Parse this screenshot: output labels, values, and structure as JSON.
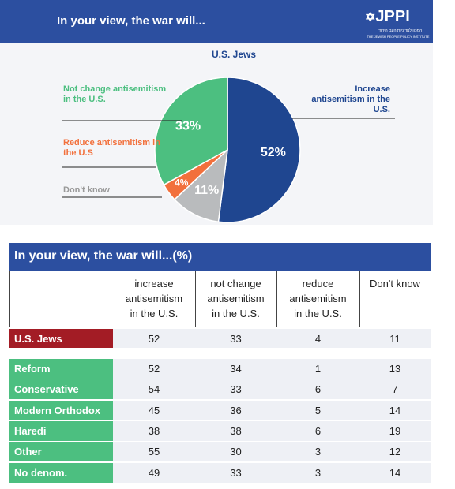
{
  "header": {
    "title": "In your view, the war will...",
    "logo": "JPPI",
    "logo_hebrew": "המכון למדיניות העם היהודי",
    "logo_subtitle": "THE JEWISH PEOPLE POLICY INSTITUTE"
  },
  "chart_data": {
    "type": "pie",
    "title": "U.S. Jews",
    "categories": [
      "Increase antisemitism in the U.S.",
      "Don't know",
      "Reduce antisemitism in the U.S",
      "Not change antisemitism in the U.S."
    ],
    "values": [
      52,
      11,
      4,
      33
    ],
    "value_labels": [
      "52%",
      "11%",
      "4%",
      "33%"
    ],
    "colors": [
      "#1f4690",
      "#b9bbbd",
      "#f2703c",
      "#4cbf80"
    ]
  },
  "table": {
    "title": "In your view, the war will...(%)",
    "columns": [
      "increase antisemitism in the U.S.",
      "not change antisemitism in the U.S.",
      "reduce antisemitism in the U.S.",
      "Don't know"
    ],
    "rows": [
      [
        "U.S. Jews",
        52,
        33,
        4,
        11
      ],
      [
        "Reform",
        52,
        34,
        1,
        13
      ],
      [
        "Conservative",
        54,
        33,
        6,
        7
      ],
      [
        "Modern Orthodox",
        45,
        36,
        5,
        14
      ],
      [
        "Haredi",
        38,
        38,
        6,
        19
      ],
      [
        "Other",
        55,
        30,
        3,
        12
      ],
      [
        "No denom.",
        49,
        33,
        3,
        14
      ]
    ]
  }
}
